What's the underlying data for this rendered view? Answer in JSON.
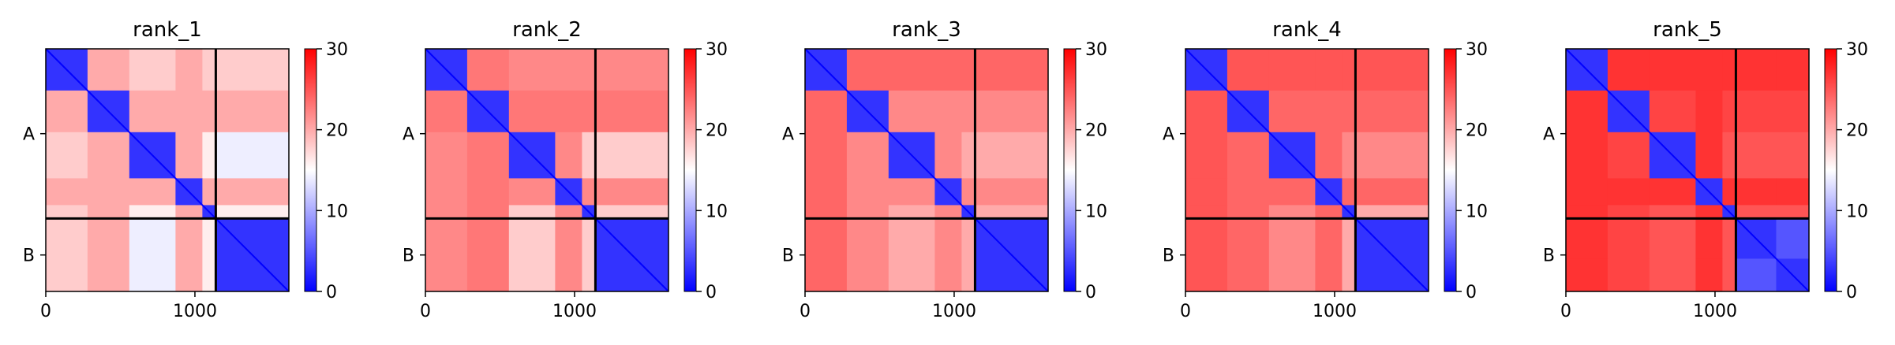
{
  "figure": {
    "background": "#ffffff"
  },
  "chart_data": [
    {
      "type": "heatmap",
      "title": "rank_1",
      "chains": [
        {
          "label": "A",
          "start": 0,
          "end": 1140
        },
        {
          "label": "B",
          "start": 1140,
          "end": 1630
        }
      ],
      "chain_divider": 1140,
      "xlim": [
        0,
        1630
      ],
      "x_ticks": [
        0,
        1000
      ],
      "y_ticks": [
        "A",
        "B"
      ],
      "colorbar": {
        "vmin": 0,
        "vmax": 30,
        "ticks": [
          0,
          10,
          20,
          30
        ],
        "colormap": "bwr"
      },
      "blocks": [
        {
          "start": 0,
          "end": 280
        },
        {
          "start": 280,
          "end": 560
        },
        {
          "start": 560,
          "end": 870
        },
        {
          "start": 870,
          "end": 1050
        },
        {
          "start": 1050,
          "end": 1140
        },
        {
          "start": 1140,
          "end": 1630
        }
      ],
      "inter_chain_pae": [
        18,
        20,
        14,
        20,
        16,
        5
      ]
    },
    {
      "type": "heatmap",
      "title": "rank_2",
      "chains": [
        {
          "label": "A",
          "start": 0,
          "end": 1140
        },
        {
          "label": "B",
          "start": 1140,
          "end": 1630
        }
      ],
      "chain_divider": 1140,
      "xlim": [
        0,
        1630
      ],
      "x_ticks": [
        0,
        1000
      ],
      "y_ticks": [
        "A",
        "B"
      ],
      "colorbar": {
        "vmin": 0,
        "vmax": 30,
        "ticks": [
          0,
          10,
          20,
          30
        ],
        "colormap": "bwr"
      },
      "blocks": [
        {
          "start": 0,
          "end": 280
        },
        {
          "start": 280,
          "end": 560
        },
        {
          "start": 560,
          "end": 870
        },
        {
          "start": 870,
          "end": 1050
        },
        {
          "start": 1050,
          "end": 1140
        },
        {
          "start": 1140,
          "end": 1630
        }
      ],
      "inter_chain_pae": [
        22,
        23,
        18,
        22,
        18,
        5
      ]
    },
    {
      "type": "heatmap",
      "title": "rank_3",
      "chains": [
        {
          "label": "A",
          "start": 0,
          "end": 1140
        },
        {
          "label": "B",
          "start": 1140,
          "end": 1630
        }
      ],
      "chain_divider": 1140,
      "xlim": [
        0,
        1630
      ],
      "x_ticks": [
        0,
        1000
      ],
      "y_ticks": [
        "A",
        "B"
      ],
      "colorbar": {
        "vmin": 0,
        "vmax": 30,
        "ticks": [
          0,
          10,
          20,
          30
        ],
        "colormap": "bwr"
      },
      "blocks": [
        {
          "start": 0,
          "end": 280
        },
        {
          "start": 280,
          "end": 560
        },
        {
          "start": 560,
          "end": 870
        },
        {
          "start": 870,
          "end": 1050
        },
        {
          "start": 1050,
          "end": 1140
        },
        {
          "start": 1140,
          "end": 1630
        }
      ],
      "inter_chain_pae": [
        24,
        22,
        20,
        22,
        20,
        5
      ]
    },
    {
      "type": "heatmap",
      "title": "rank_4",
      "chains": [
        {
          "label": "A",
          "start": 0,
          "end": 1140
        },
        {
          "label": "B",
          "start": 1140,
          "end": 1630
        }
      ],
      "chain_divider": 1140,
      "xlim": [
        0,
        1630
      ],
      "x_ticks": [
        0,
        1000
      ],
      "y_ticks": [
        "A",
        "B"
      ],
      "colorbar": {
        "vmin": 0,
        "vmax": 30,
        "ticks": [
          0,
          10,
          20,
          30
        ],
        "colormap": "bwr"
      },
      "blocks": [
        {
          "start": 0,
          "end": 280
        },
        {
          "start": 280,
          "end": 560
        },
        {
          "start": 560,
          "end": 870
        },
        {
          "start": 870,
          "end": 1050
        },
        {
          "start": 1050,
          "end": 1140
        },
        {
          "start": 1140,
          "end": 1630
        }
      ],
      "inter_chain_pae": [
        25,
        24,
        22,
        24,
        20,
        5
      ]
    },
    {
      "type": "heatmap",
      "title": "rank_5",
      "chains": [
        {
          "label": "A",
          "start": 0,
          "end": 1140
        },
        {
          "label": "B",
          "start": 1140,
          "end": 1630
        }
      ],
      "chain_divider": 1140,
      "xlim": [
        0,
        1630
      ],
      "x_ticks": [
        0,
        1000
      ],
      "y_ticks": [
        "A",
        "B"
      ],
      "colorbar": {
        "vmin": 0,
        "vmax": 30,
        "ticks": [
          0,
          10,
          20,
          30
        ],
        "colormap": "bwr"
      },
      "blocks": [
        {
          "start": 0,
          "end": 280
        },
        {
          "start": 280,
          "end": 560
        },
        {
          "start": 560,
          "end": 870
        },
        {
          "start": 870,
          "end": 1050
        },
        {
          "start": 1050,
          "end": 1140
        },
        {
          "start": 1140,
          "end": 1410
        },
        {
          "start": 1410,
          "end": 1630
        }
      ],
      "inter_chain_pae": [
        27,
        26,
        25,
        27,
        25,
        5,
        5
      ]
    }
  ]
}
